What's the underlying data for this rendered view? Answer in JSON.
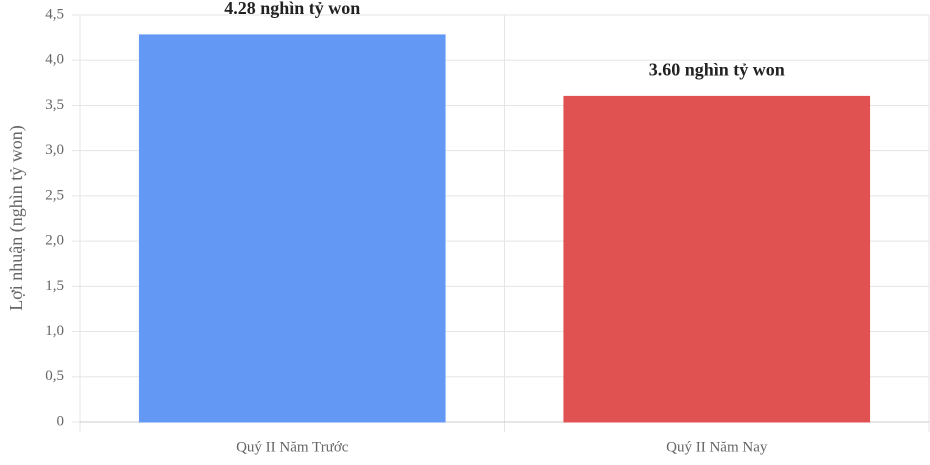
{
  "chart_data": {
    "type": "bar",
    "y_label": "Lợi nhuận (nghìn tỷ won)",
    "categories": [
      "Quý II Năm Trước",
      "Quý II Năm Nay"
    ],
    "values": [
      4.28,
      3.6
    ],
    "value_labels": [
      "4.28 nghìn tỷ won",
      "3.60 nghìn tỷ won"
    ],
    "colors": [
      "#6399f5",
      "#e05252"
    ],
    "ylim": [
      0,
      4.5
    ],
    "yticks": [
      0,
      {
        "value": 0.5,
        "label": "0,5"
      },
      {
        "value": 1,
        "label": "1,0"
      },
      {
        "value": 1.5,
        "label": "1,5"
      },
      {
        "value": 2,
        "label": "2,0"
      },
      {
        "value": 2.5,
        "label": "2,5"
      },
      {
        "value": 3,
        "label": "3,0"
      },
      {
        "value": 3.5,
        "label": "3,5"
      },
      {
        "value": 4,
        "label": "4,0"
      },
      {
        "value": 4.5,
        "label": "4,5"
      }
    ],
    "grid": true
  }
}
